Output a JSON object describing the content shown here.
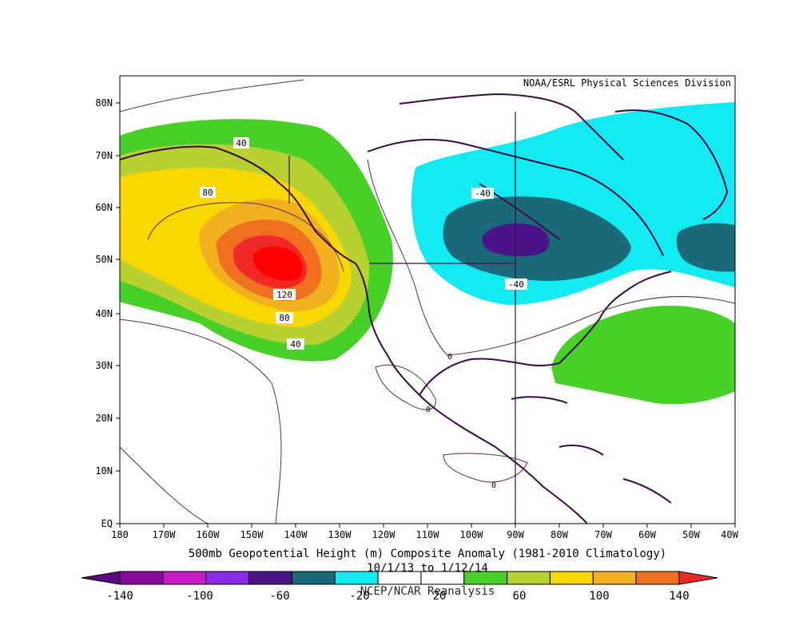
{
  "map": {
    "credit": "NOAA/ESRL Physical Sciences Division",
    "title_line1": "500mb Geopotential Height (m) Composite Anomaly (1981-2010 Climatology)",
    "title_line2": "10/1/13  to 1/12/14",
    "title_line3": "NCEP/NCAR Reanalysis",
    "lat_labels": [
      "80N",
      "70N",
      "60N",
      "50N",
      "40N",
      "30N",
      "20N",
      "10N",
      "EQ"
    ],
    "lon_labels": [
      "180",
      "170W",
      "160W",
      "150W",
      "140W",
      "130W",
      "120W",
      "110W",
      "100W",
      "90W",
      "80W",
      "70W",
      "60W",
      "50W",
      "40W"
    ],
    "contour_labels": [
      "40",
      "80",
      "120",
      "80",
      "40",
      "-40",
      "-40",
      "0",
      "0",
      "0"
    ]
  },
  "colorbar": {
    "labels": [
      "-140",
      "-100",
      "-60",
      "-20",
      "20",
      "60",
      "100",
      "140"
    ],
    "colors": [
      "#5a0a80",
      "#8a0aa0",
      "#c818c8",
      "#8a28e8",
      "#4a1488",
      "#1a6a7a",
      "#10eaf0",
      "#ffffff",
      "#ffffff",
      "#48d028",
      "#b8d030",
      "#f8d800",
      "#f0b020",
      "#f07020",
      "#f02828"
    ]
  }
}
